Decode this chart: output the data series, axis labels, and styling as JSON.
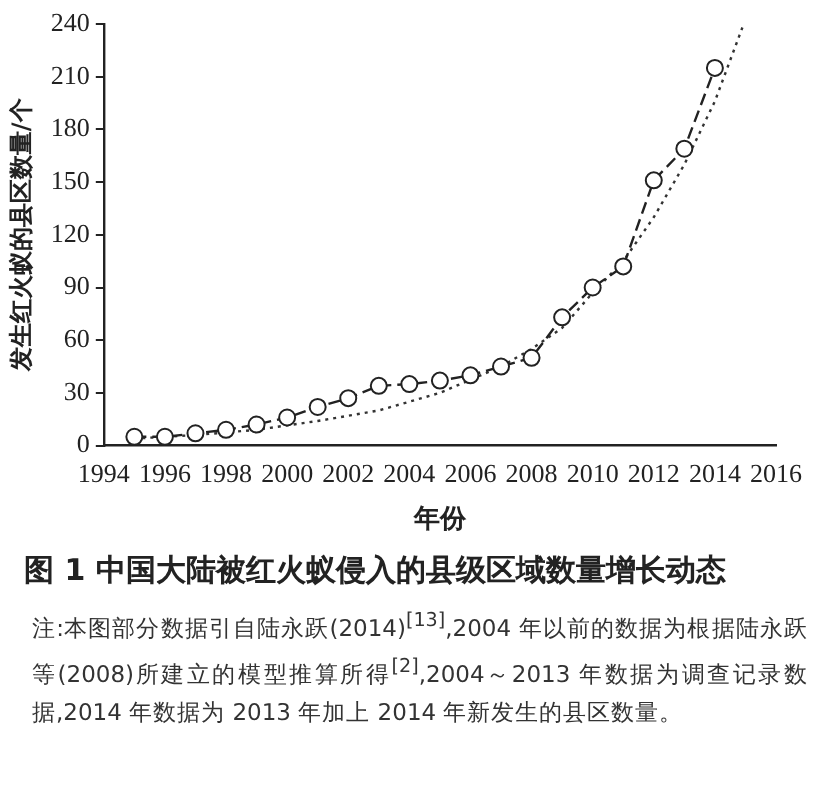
{
  "chart_data": {
    "type": "line",
    "title": "图 1  中国大陆被红火蚁侵入的县级区域数量增长动态",
    "xlabel": "年份",
    "ylabel": "发生红火蚁的县区数量/个",
    "annotations": [
      "注:本图部分数据引自陆永跃(2014)$^{[13]}$,2004 年以前的数据为根据陆永跃等(2008)所建立的模型推算所得$^{[2]}$,2004～2013 年数据为调查记录数据,2014 年数据为 2013 年加上 2014 年新发生的县区数量。"
    ],
    "x": [
      1995,
      1996,
      1997,
      1998,
      1999,
      2000,
      2001,
      2002,
      2003,
      2004,
      2005,
      2006,
      2007,
      2008,
      2009,
      2010,
      2011,
      2012,
      2013,
      2014
    ],
    "series": [
      {
        "color": "#222222",
        "marker": "circle",
        "line_style": "dashed",
        "values": [
          5,
          5,
          7,
          9,
          12,
          16,
          22,
          27,
          34,
          35,
          37,
          40,
          45,
          50,
          73,
          90,
          102,
          151,
          169,
          215
        ]
      },
      {
        "type": "line",
        "color": "#333333",
        "marker": "none",
        "line_style": "dotted",
        "x": [
          1995,
          1997,
          1999,
          2001,
          2003,
          2005,
          2007,
          2008,
          2009,
          2010,
          2011,
          2012,
          2013,
          2014,
          2014.9
        ],
        "values": [
          4,
          6,
          9,
          14,
          20,
          30,
          45,
          55,
          67,
          87,
          105,
          130,
          160,
          196,
          238
        ]
      }
    ],
    "xlim": [
      1994,
      2016
    ],
    "xticks": [
      1994,
      1996,
      1998,
      2000,
      2002,
      2004,
      2006,
      2008,
      2010,
      2012,
      2014,
      2016
    ],
    "ylim": [
      0,
      240
    ],
    "yticks": [
      0,
      30,
      60,
      90,
      120,
      150,
      180,
      210,
      240
    ],
    "grid": false,
    "legend": false
  }
}
